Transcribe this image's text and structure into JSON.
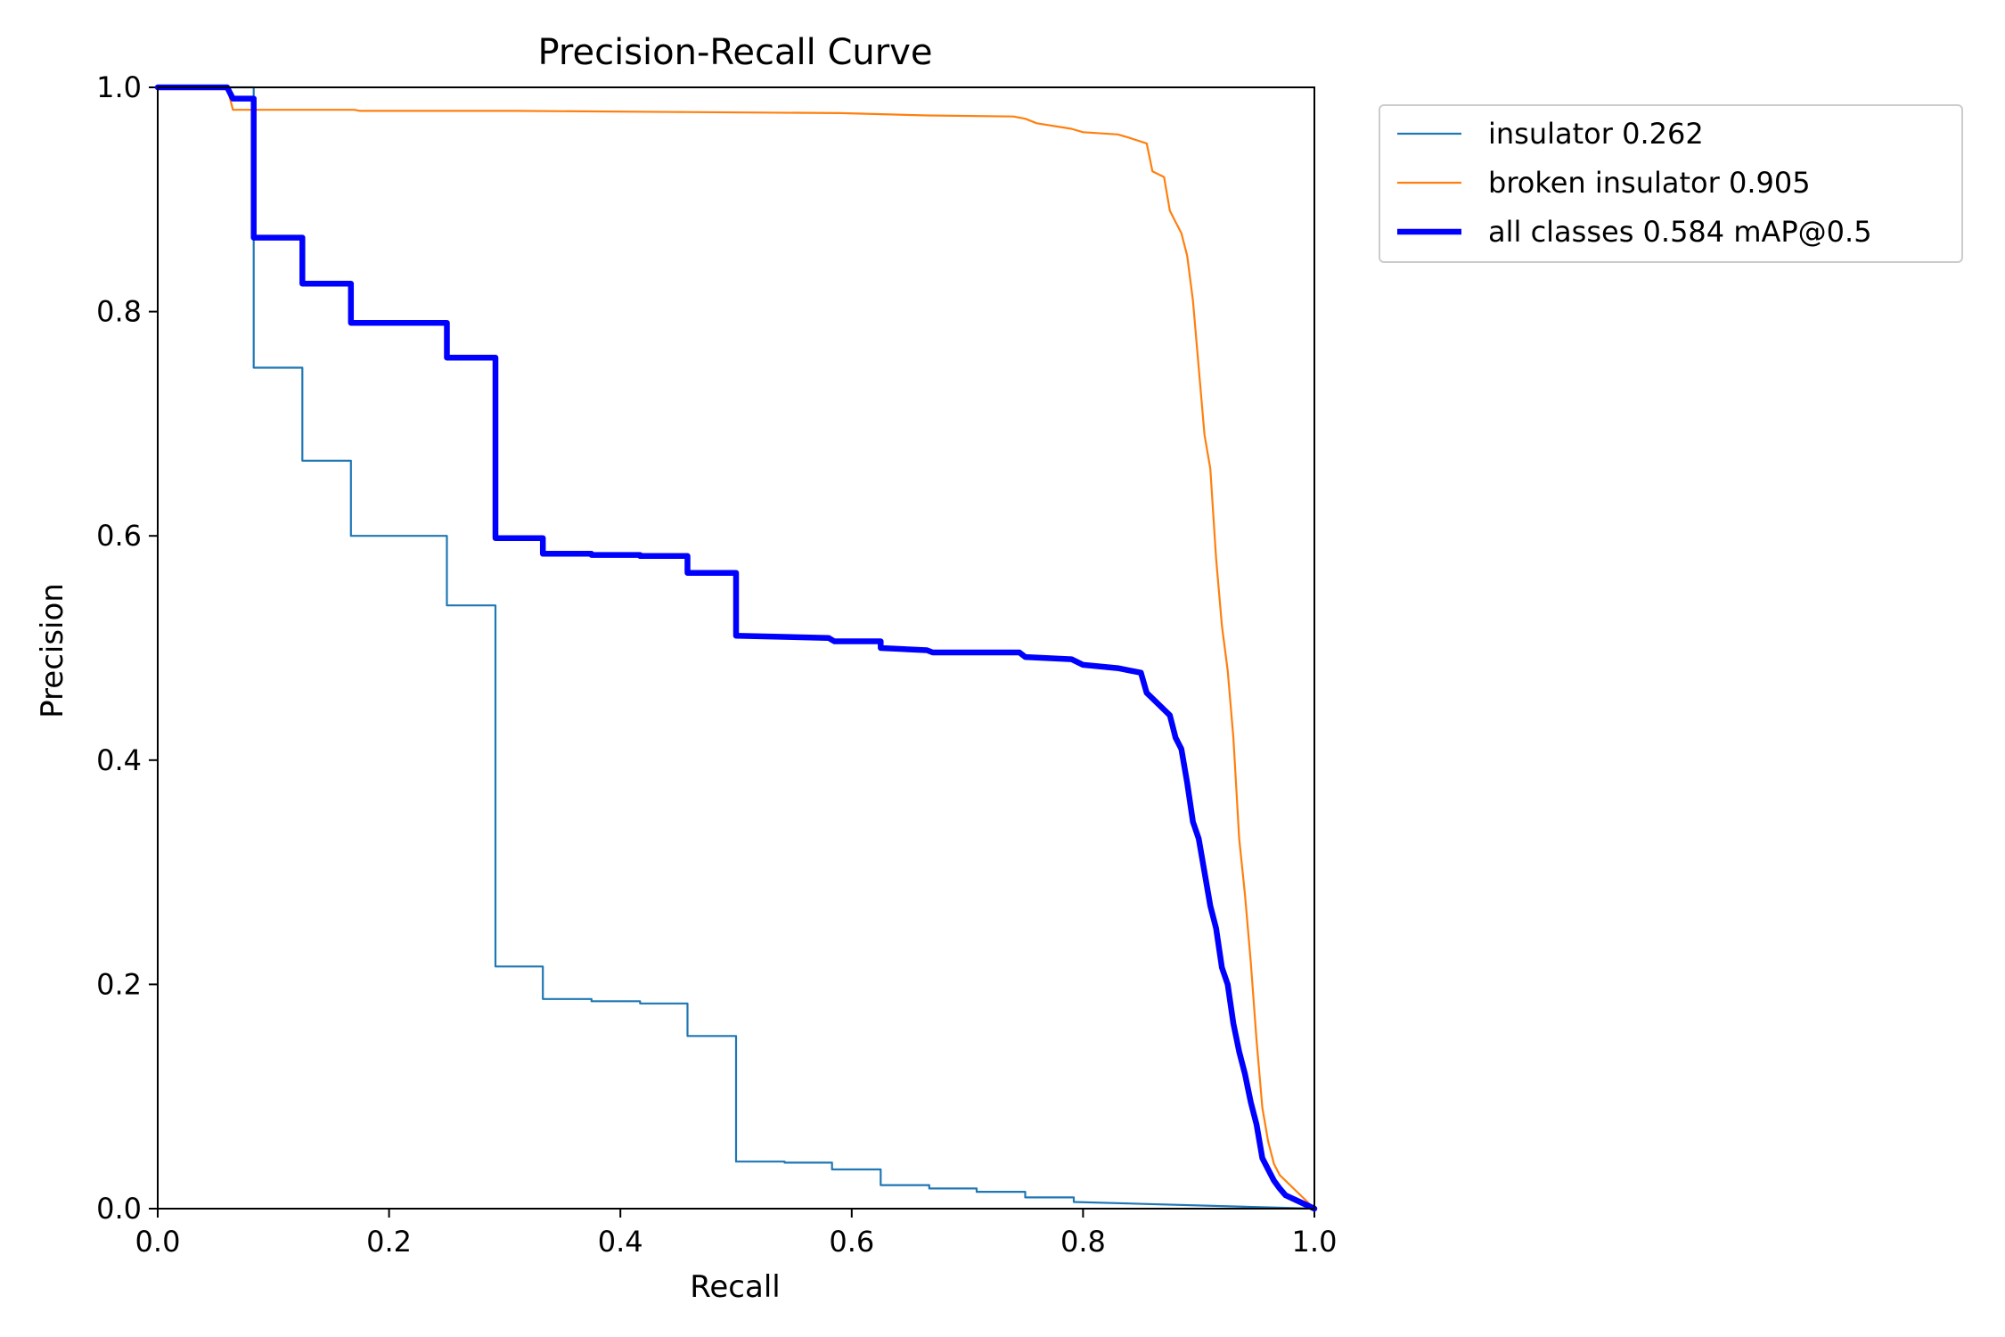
{
  "chart_data": {
    "type": "line",
    "title": "Precision-Recall Curve",
    "xlabel": "Recall",
    "ylabel": "Precision",
    "xlim": [
      0,
      1
    ],
    "ylim": [
      0,
      1
    ],
    "xticks": [
      "0.0",
      "0.2",
      "0.4",
      "0.6",
      "0.8",
      "1.0"
    ],
    "yticks": [
      "0.0",
      "0.2",
      "0.4",
      "0.6",
      "0.8",
      "1.0"
    ],
    "grid": false,
    "legend_position": "outside-top-right",
    "series": [
      {
        "name": "insulator 0.262",
        "color": "#1f77b4",
        "width": "thin",
        "x": [
          0,
          0.083,
          0.083,
          0.125,
          0.125,
          0.167,
          0.167,
          0.25,
          0.25,
          0.292,
          0.292,
          0.333,
          0.333,
          0.375,
          0.375,
          0.417,
          0.417,
          0.458,
          0.458,
          0.5,
          0.5,
          0.542,
          0.542,
          0.583,
          0.583,
          0.625,
          0.625,
          0.667,
          0.667,
          0.708,
          0.708,
          0.75,
          0.75,
          0.792,
          0.792,
          1.0
        ],
        "y": [
          1.0,
          1.0,
          0.75,
          0.75,
          0.667,
          0.667,
          0.6,
          0.6,
          0.538,
          0.538,
          0.216,
          0.216,
          0.187,
          0.187,
          0.185,
          0.185,
          0.183,
          0.183,
          0.154,
          0.154,
          0.042,
          0.042,
          0.041,
          0.041,
          0.035,
          0.035,
          0.021,
          0.021,
          0.018,
          0.018,
          0.015,
          0.015,
          0.01,
          0.01,
          0.006,
          0.0
        ]
      },
      {
        "name": "broken insulator 0.905",
        "color": "#ff7f0e",
        "width": "thin",
        "x": [
          0,
          0.06,
          0.065,
          0.065,
          0.17,
          0.175,
          0.31,
          0.455,
          0.59,
          0.665,
          0.74,
          0.75,
          0.76,
          0.79,
          0.8,
          0.83,
          0.84,
          0.855,
          0.86,
          0.87,
          0.875,
          0.88,
          0.885,
          0.89,
          0.895,
          0.9,
          0.905,
          0.91,
          0.915,
          0.92,
          0.925,
          0.93,
          0.935,
          0.94,
          0.945,
          0.95,
          0.955,
          0.96,
          0.965,
          0.97,
          0.975,
          1.0
        ],
        "y": [
          1.0,
          1.0,
          0.98,
          0.98,
          0.98,
          0.979,
          0.979,
          0.978,
          0.977,
          0.975,
          0.974,
          0.972,
          0.968,
          0.963,
          0.96,
          0.958,
          0.955,
          0.95,
          0.925,
          0.92,
          0.89,
          0.88,
          0.87,
          0.85,
          0.81,
          0.75,
          0.69,
          0.66,
          0.58,
          0.52,
          0.48,
          0.42,
          0.33,
          0.28,
          0.22,
          0.15,
          0.09,
          0.06,
          0.04,
          0.03,
          0.025,
          0.0
        ]
      },
      {
        "name": "all classes 0.584 mAP@0.5",
        "color": "#0000ff",
        "width": "thick",
        "x": [
          0,
          0.06,
          0.065,
          0.083,
          0.083,
          0.125,
          0.125,
          0.167,
          0.167,
          0.25,
          0.25,
          0.292,
          0.292,
          0.333,
          0.333,
          0.375,
          0.375,
          0.417,
          0.417,
          0.458,
          0.458,
          0.5,
          0.5,
          0.58,
          0.585,
          0.625,
          0.625,
          0.665,
          0.67,
          0.745,
          0.75,
          0.79,
          0.8,
          0.83,
          0.84,
          0.85,
          0.855,
          0.86,
          0.87,
          0.875,
          0.88,
          0.885,
          0.89,
          0.895,
          0.9,
          0.905,
          0.91,
          0.915,
          0.92,
          0.925,
          0.93,
          0.935,
          0.94,
          0.945,
          0.95,
          0.955,
          0.96,
          0.965,
          0.97,
          0.975,
          1.0
        ],
        "y": [
          1.0,
          1.0,
          0.99,
          0.99,
          0.866,
          0.866,
          0.825,
          0.825,
          0.79,
          0.79,
          0.759,
          0.759,
          0.598,
          0.598,
          0.584,
          0.584,
          0.583,
          0.583,
          0.582,
          0.582,
          0.567,
          0.567,
          0.511,
          0.509,
          0.506,
          0.506,
          0.5,
          0.498,
          0.496,
          0.496,
          0.492,
          0.49,
          0.485,
          0.482,
          0.48,
          0.478,
          0.46,
          0.455,
          0.445,
          0.44,
          0.42,
          0.41,
          0.38,
          0.345,
          0.33,
          0.3,
          0.27,
          0.25,
          0.215,
          0.2,
          0.165,
          0.14,
          0.12,
          0.095,
          0.075,
          0.045,
          0.035,
          0.025,
          0.018,
          0.012,
          0.0
        ]
      }
    ]
  }
}
